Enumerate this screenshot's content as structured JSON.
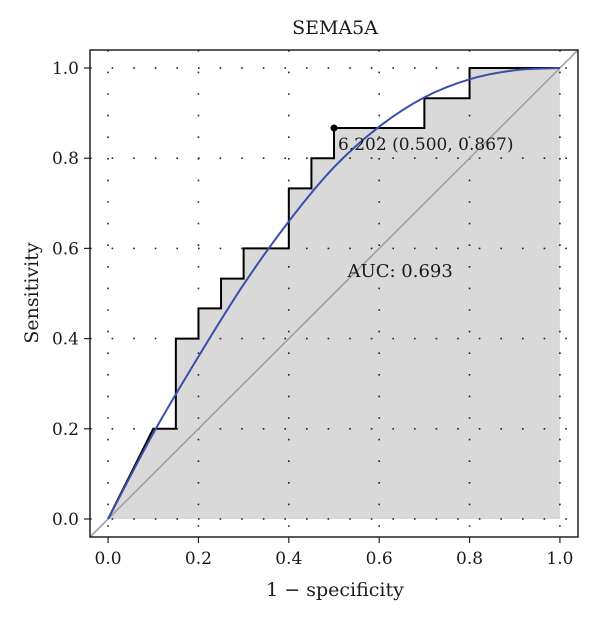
{
  "chart_data": {
    "type": "line",
    "title": "SEMA5A",
    "xlabel": "1 − specificity",
    "ylabel": "Sensitivity",
    "xlim": [
      -0.04,
      1.04
    ],
    "ylim": [
      -0.04,
      1.04
    ],
    "xticks": [
      "0.0",
      "0.2",
      "0.4",
      "0.6",
      "0.8",
      "1.0"
    ],
    "yticks": [
      "0.0",
      "0.2",
      "0.4",
      "0.6",
      "0.8",
      "1.0"
    ],
    "grid": true,
    "auc_label": "AUC: 0.693",
    "threshold": {
      "label": "6.202 (0.500, 0.867)",
      "x": 0.5,
      "y": 0.867
    },
    "roc_curve": {
      "x": [
        0,
        0.1,
        0.1,
        0.15,
        0.15,
        0.2,
        0.2,
        0.25,
        0.25,
        0.3,
        0.3,
        0.4,
        0.4,
        0.45,
        0.45,
        0.5,
        0.5,
        0.7,
        0.7,
        0.8,
        0.8,
        1.0
      ],
      "y": [
        0,
        0.2,
        0.2,
        0.2,
        0.4,
        0.4,
        0.467,
        0.467,
        0.533,
        0.533,
        0.6,
        0.6,
        0.733,
        0.733,
        0.8,
        0.8,
        0.867,
        0.867,
        0.933,
        0.933,
        1.0,
        1.0
      ]
    },
    "smooth_curve": {
      "x": [
        0,
        0.1,
        0.2,
        0.3,
        0.4,
        0.5,
        0.6,
        0.7,
        0.8,
        0.9,
        1.0
      ],
      "y": [
        0,
        0.19,
        0.36,
        0.52,
        0.66,
        0.78,
        0.87,
        0.935,
        0.975,
        0.995,
        1.0
      ]
    },
    "diagonal": {
      "x": [
        -0.04,
        1.04
      ],
      "y": [
        -0.04,
        1.04
      ]
    },
    "colors": {
      "roc": "#000000",
      "smooth": "#3a4fa6",
      "fill": "#d9d9d9",
      "diagonal": "#a0a0a0"
    }
  }
}
